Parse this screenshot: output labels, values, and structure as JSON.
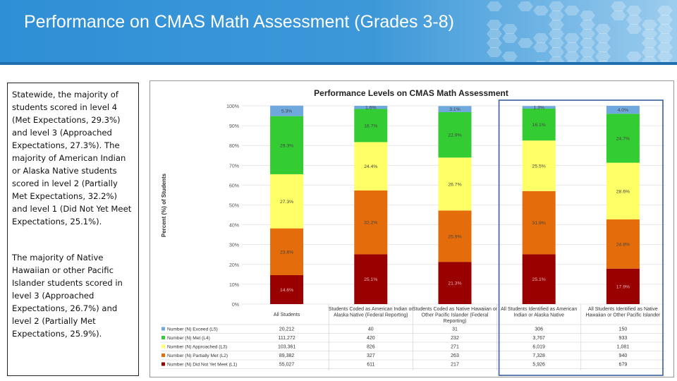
{
  "slide": {
    "title": "Performance on CMAS Math Assessment (Grades 3-8)",
    "paragraphs": [
      "Statewide, the majority of students scored in level 4 (Met Expectations, 29.3%) and level 3 (Approached Expectations, 27.3%). The majority of American Indian or Alaska Native students scored in level 2 (Partially Met Expectations, 32.2%) and level 1 (Did Not Yet Meet Expectations, 25.1%).",
      "The majority of Native Hawaiian or other Pacific Islander students scored in level 3 (Approached Expectations, 26.7%) and level 2 (Partially Met Expectations, 25.9%)."
    ]
  },
  "chart_data": {
    "type": "bar",
    "stacked": true,
    "title": "Performance Levels on CMAS Math Assessment",
    "ylabel": "Percent (%) of Students",
    "ylim": [
      0,
      100
    ],
    "yticks": [
      "0%",
      "10%",
      "20%",
      "30%",
      "40%",
      "50%",
      "60%",
      "70%",
      "80%",
      "90%",
      "100%"
    ],
    "categories": [
      "All Students",
      "Students Coded as American Indian or Alaska Native (Federal Reporting)",
      "Students Coded as Native Hawaiian or Other Pacific Islander (Federal Reporting)",
      "All Students Identified as American Indian or Alaska Native",
      "All Students Identified as Native Hawaiian or Other Pacific Islander"
    ],
    "series": [
      {
        "name": "Number (N) Did Not Yet Meet (L1)",
        "color": "#990000",
        "values": [
          14.6,
          25.1,
          21.3,
          25.1,
          17.9
        ],
        "labels": [
          "14.6%",
          "25.1%",
          "21.3%",
          "25.1%",
          "17.9%"
        ],
        "counts": [
          "55,027",
          "611",
          "217",
          "5,926",
          "679"
        ]
      },
      {
        "name": "Number (N) Partially Met (L2)",
        "color": "#e46c0a",
        "values": [
          23.6,
          32.2,
          25.9,
          31.9,
          24.8
        ],
        "labels": [
          "23.6%",
          "32.2%",
          "25.9%",
          "31.9%",
          "24.8%"
        ],
        "counts": [
          "89,382",
          "327",
          "263",
          "7,328",
          "940"
        ]
      },
      {
        "name": "Number (N) Approached (L3)",
        "color": "#ffff66",
        "values": [
          27.3,
          24.4,
          26.7,
          25.5,
          28.6
        ],
        "labels": [
          "27.3%",
          "24.4%",
          "26.7%",
          "25.5%",
          "28.6%"
        ],
        "counts": [
          "103,361",
          "826",
          "271",
          "6,019",
          "1,081"
        ]
      },
      {
        "name": "Number (N) Met (L4)",
        "color": "#33cc33",
        "values": [
          29.3,
          16.7,
          22.9,
          16.1,
          24.7
        ],
        "labels": [
          "29.3%",
          "16.7%",
          "22.9%",
          "16.1%",
          "24.7%"
        ],
        "counts": [
          "111,272",
          "420",
          "232",
          "3,767",
          "933"
        ]
      },
      {
        "name": "Number (N) Exceed (L5)",
        "color": "#6fa8dc",
        "values": [
          5.3,
          1.6,
          3.1,
          1.3,
          4.0
        ],
        "labels": [
          "5.3%",
          "1.6%",
          "3.1%",
          "1.3%",
          "4.0%"
        ],
        "counts": [
          "20,212",
          "40",
          "31",
          "306",
          "150"
        ]
      }
    ],
    "table_order": [
      4,
      3,
      2,
      1,
      0
    ],
    "highlight_categories": [
      3,
      4
    ]
  }
}
